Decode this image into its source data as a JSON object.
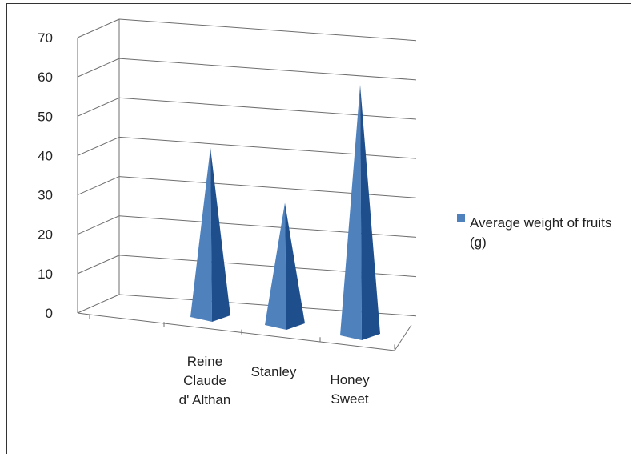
{
  "chart_data": {
    "type": "bar",
    "style": "3d-pyramid",
    "categories": [
      "Reine Claude d' Althan",
      "Stanley",
      "Honey Sweet"
    ],
    "category_label_lines": [
      [
        "Reine",
        "Claude",
        "d' Althan"
      ],
      [
        "Stanley"
      ],
      [
        "Honey",
        "Sweet"
      ]
    ],
    "series": [
      {
        "name": "Average weight of fruits (g)",
        "values": [
          43,
          29,
          59
        ]
      }
    ],
    "legend_lines": [
      "Average weight of fruits",
      "(g)"
    ],
    "ylim": [
      0,
      70
    ],
    "yticks": [
      0,
      10,
      20,
      30,
      40,
      50,
      60,
      70
    ],
    "grid": true,
    "legend": "right",
    "colors": {
      "bar_light": "#4f81bd",
      "bar_dark": "#1f4e8c",
      "grid": "#6e6e6e"
    }
  }
}
